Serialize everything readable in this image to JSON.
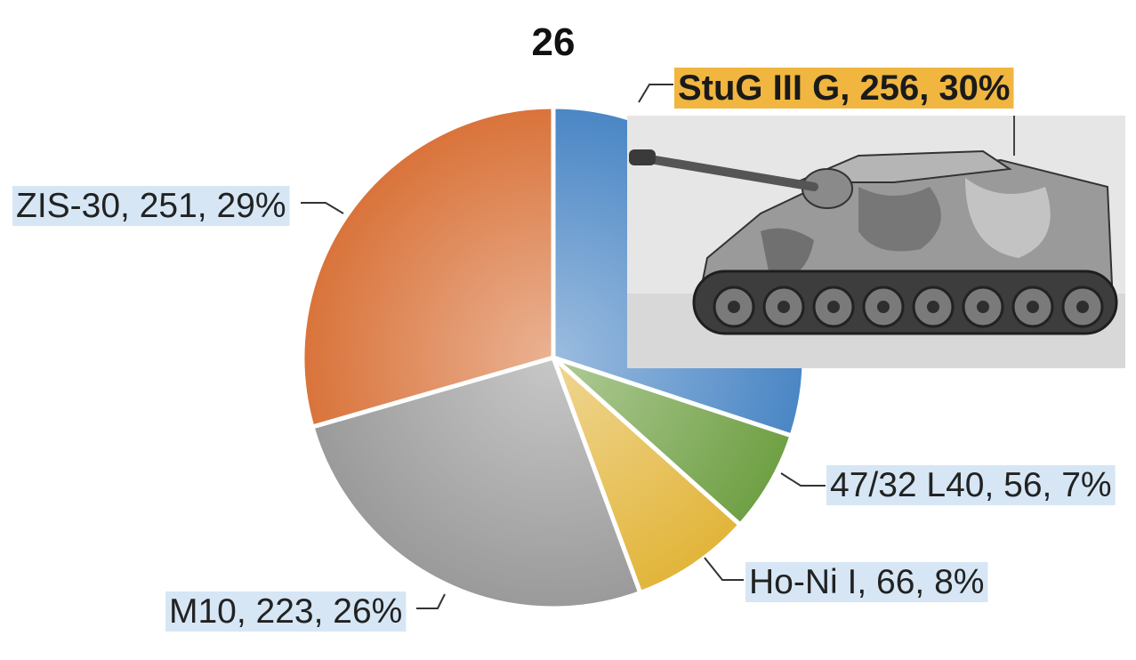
{
  "chart_data": {
    "type": "pie",
    "title": "26",
    "slices": [
      {
        "name": "StuG III G",
        "value": 256,
        "percent": 30,
        "label": "StuG III G, 256, 30%",
        "color": "#4a86c5",
        "highlight": true
      },
      {
        "name": "47/32 L40",
        "value": 56,
        "percent": 7,
        "label": "47/32 L40, 56, 7%",
        "color": "#6fa044"
      },
      {
        "name": "Ho-Ni I",
        "value": 66,
        "percent": 8,
        "label": "Ho-Ni I, 66, 8%",
        "color": "#e2b53a"
      },
      {
        "name": "M10",
        "value": 223,
        "percent": 26,
        "label": "M10, 223, 26%",
        "color": "#9a9a9a"
      },
      {
        "name": "ZIS-30",
        "value": 251,
        "percent": 29,
        "label": "ZIS-30, 251, 29%",
        "color": "#d9733a"
      }
    ],
    "label_bg": "#d6e6f5",
    "highlight_bg": "#f0b63f",
    "legend": "none"
  }
}
